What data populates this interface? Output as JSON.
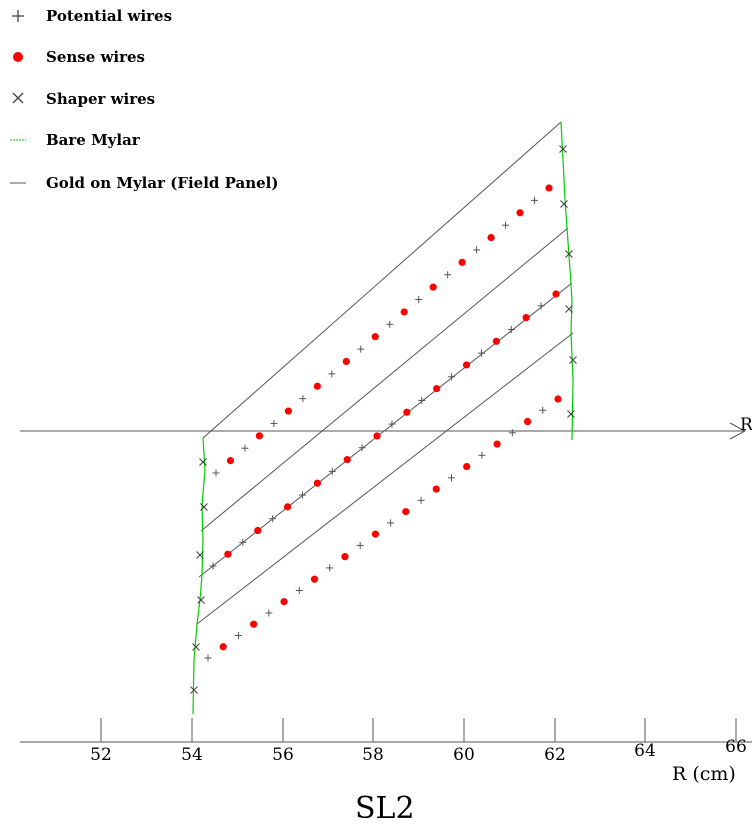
{
  "legend": {
    "potential": "Potential wires",
    "sense": "Sense wires",
    "shaper": "Shaper wires",
    "mylar": "Bare Mylar",
    "gold": "Gold on Mylar (Field Panel)"
  },
  "axis": {
    "xlabel": "R (cm)",
    "end_label": "R",
    "ticks": [
      "52",
      "54",
      "56",
      "58",
      "60",
      "62",
      "64",
      "66"
    ]
  },
  "title": "SL2",
  "colors": {
    "sense": "#ff0000",
    "mylar": "#00cc00",
    "gold": "#555555",
    "axis": "#555555"
  }
}
